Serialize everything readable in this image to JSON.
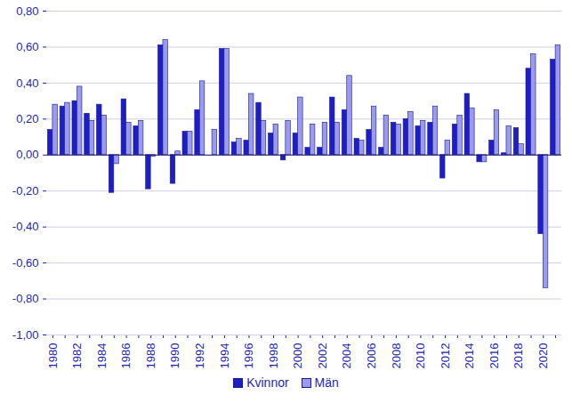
{
  "chart_data": {
    "type": "bar",
    "categories": [
      "1980",
      null,
      "1982",
      null,
      "1984",
      null,
      "1986",
      null,
      "1988",
      null,
      "1990",
      null,
      "1992",
      null,
      "1994",
      null,
      "1996",
      null,
      "1998",
      null,
      "2000",
      null,
      "2002",
      null,
      "2004",
      null,
      "2006",
      null,
      "2008",
      null,
      "2010",
      null,
      "2012",
      null,
      "2014",
      null,
      "2016",
      null,
      "2018",
      null,
      "2020",
      null
    ],
    "series": [
      {
        "name": "Kvinnor",
        "color": "#1e1ec8",
        "values": [
          0.14,
          0.27,
          0.3,
          0.23,
          0.28,
          -0.21,
          0.31,
          0.16,
          -0.19,
          0.61,
          -0.16,
          0.13,
          0.25,
          0.0,
          0.59,
          0.07,
          0.08,
          0.29,
          0.12,
          -0.03,
          0.12,
          0.04,
          0.04,
          0.32,
          0.25,
          0.09,
          0.14,
          0.04,
          0.18,
          0.2,
          0.16,
          0.18,
          -0.13,
          0.17,
          0.34,
          -0.04,
          0.08,
          0.01,
          0.15,
          0.48,
          -0.44,
          0.53
        ]
      },
      {
        "name": "Män",
        "color": "#9a9aee",
        "values": [
          0.28,
          0.29,
          0.38,
          0.19,
          0.22,
          -0.05,
          0.18,
          0.19,
          -0.01,
          0.64,
          0.02,
          0.13,
          0.41,
          0.14,
          0.59,
          0.09,
          0.34,
          0.19,
          0.17,
          0.19,
          0.32,
          0.17,
          0.18,
          0.18,
          0.44,
          0.08,
          0.27,
          0.22,
          0.17,
          0.24,
          0.19,
          0.27,
          0.08,
          0.22,
          0.26,
          -0.04,
          0.25,
          0.16,
          0.06,
          0.56,
          -0.74,
          0.61
        ]
      }
    ],
    "ylim": [
      -1.0,
      0.8
    ],
    "yticks": [
      {
        "value": -1.0,
        "label": "-1,00"
      },
      {
        "value": -0.8,
        "label": "-0,80"
      },
      {
        "value": -0.6,
        "label": "-0,60"
      },
      {
        "value": -0.4,
        "label": "-0,40"
      },
      {
        "value": -0.2,
        "label": "-0,20"
      },
      {
        "value": 0,
        "label": "0,00"
      },
      {
        "value": 0.2,
        "label": "0,20"
      },
      {
        "value": 0.4,
        "label": "0,40"
      },
      {
        "value": 0.6,
        "label": "0,60"
      },
      {
        "value": 0.8,
        "label": "0,80"
      }
    ],
    "grid": true,
    "legend": "bottom"
  }
}
